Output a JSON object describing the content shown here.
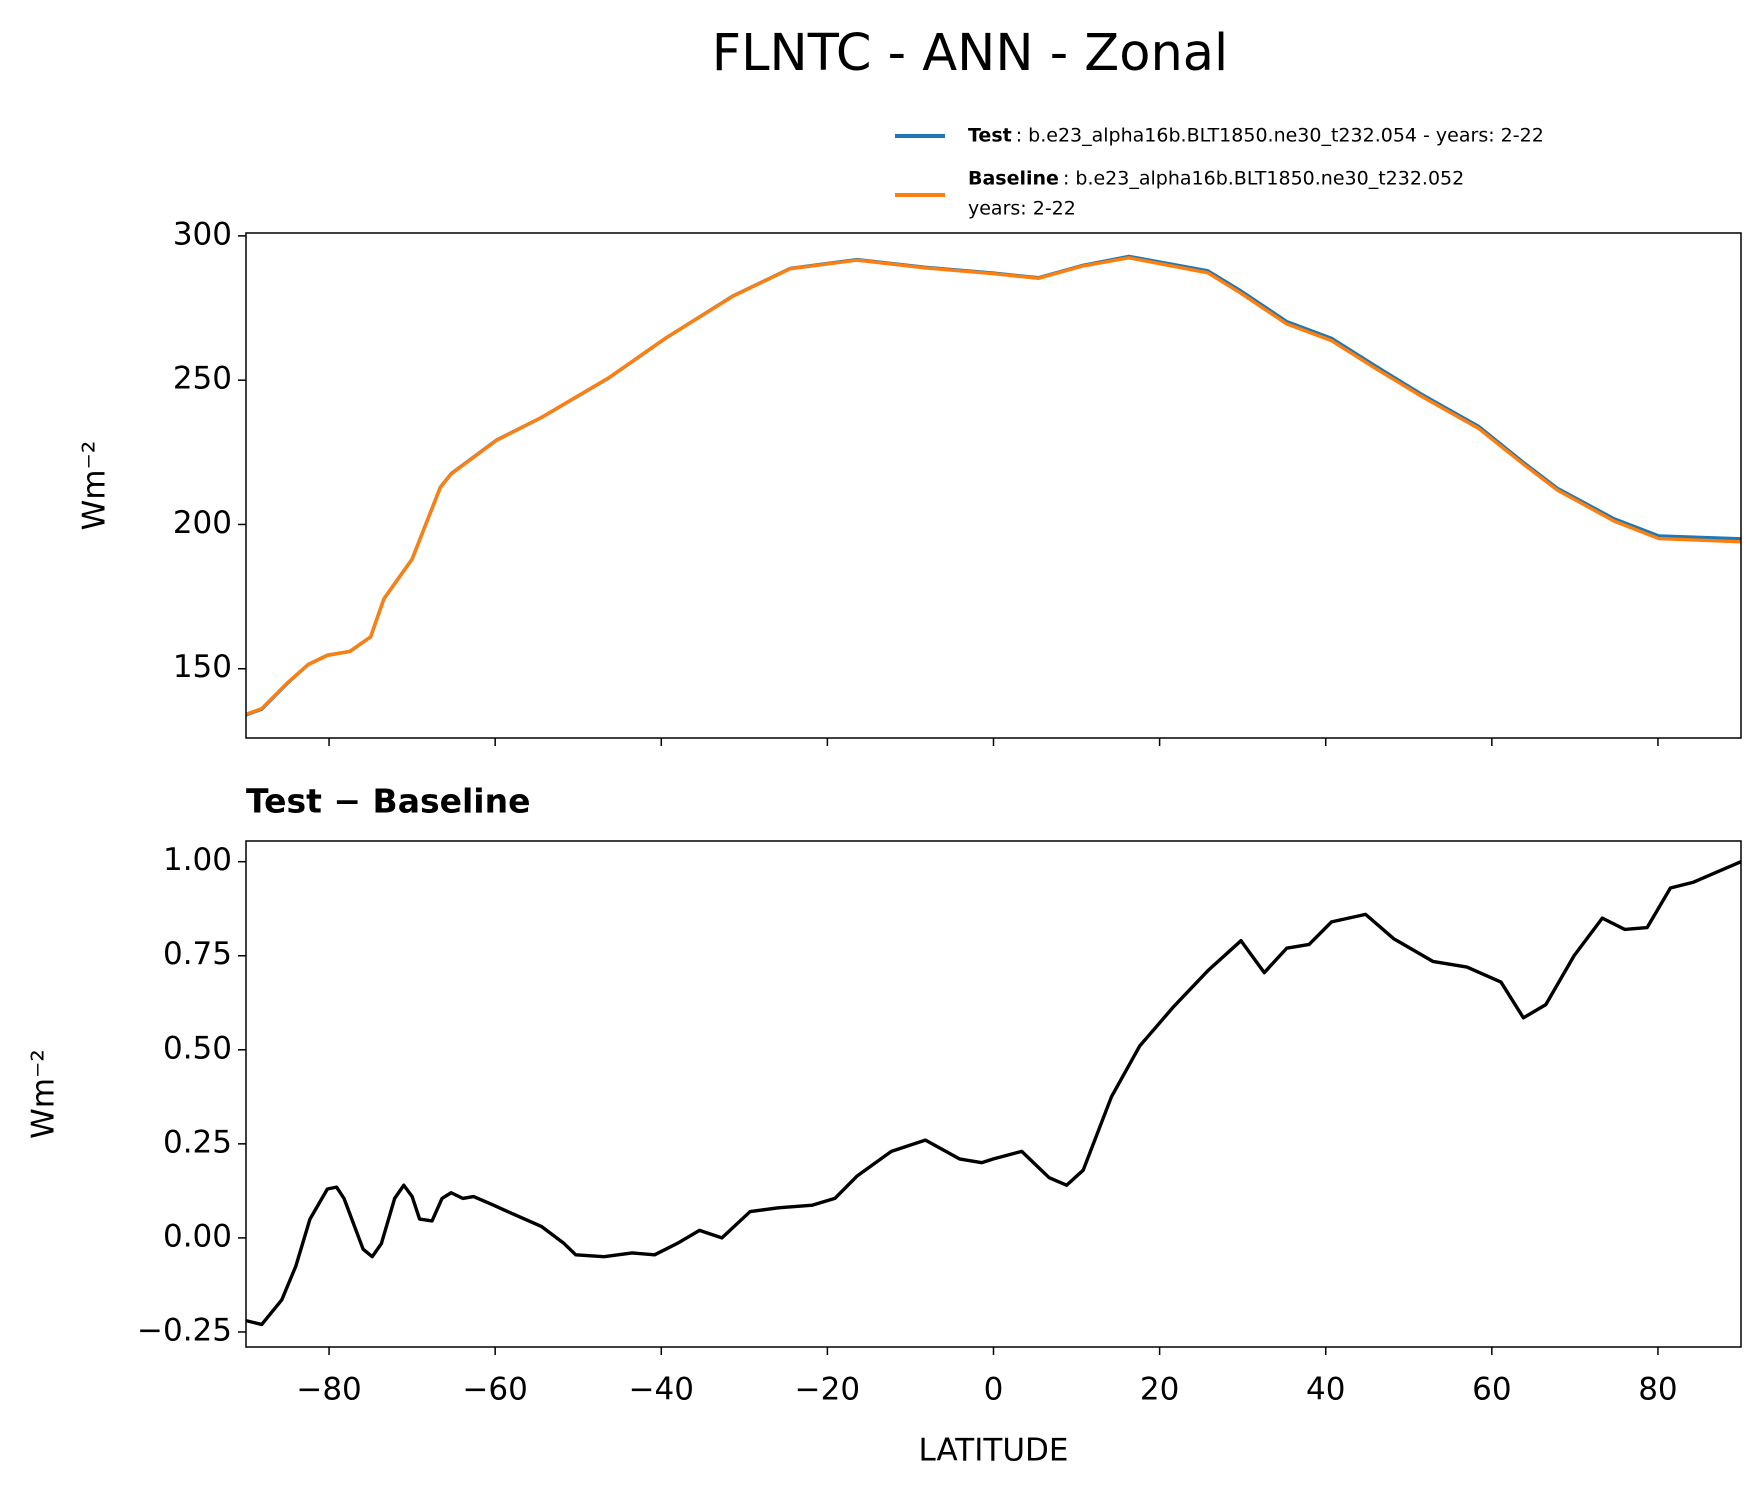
{
  "title": "FLNTC - ANN - Zonal",
  "chart_data": [
    {
      "type": "line",
      "ylabel": "Wm⁻²",
      "x": [
        -90,
        -88.1,
        -85,
        -82.5,
        -80.2,
        -77.5,
        -75,
        -73.4,
        -70,
        -66.6,
        -65.3,
        -59.8,
        -54.4,
        -46.3,
        -39.5,
        -31.3,
        -24.5,
        -16.4,
        -8.2,
        0,
        5.4,
        10.8,
        16.3,
        25.8,
        29.8,
        35.3,
        40.7,
        46.1,
        51.6,
        58.4,
        63.8,
        67.9,
        74.7,
        80.1,
        90
      ],
      "series": [
        {
          "name": "Test",
          "label": [
            ": b.e23_alpha16b.BLT1850.ne30_t232.054 - years: 2-22"
          ],
          "color": "#1f77b4",
          "values": [
            134,
            136,
            145,
            151.5,
            154.7,
            156,
            161,
            174.2,
            188,
            212.9,
            217.6,
            229.3,
            237.1,
            250.8,
            264.5,
            279.3,
            288.7,
            291.8,
            289.1,
            287.1,
            285.5,
            289.8,
            292.9,
            287.9,
            280.9,
            270.3,
            264.5,
            254.7,
            245,
            234,
            221.5,
            212.5,
            202,
            196,
            195
          ]
        },
        {
          "name": "Baseline",
          "label": [
            ": b.e23_alpha16b.BLT1850.ne30_t232.052",
            "years: 2-22"
          ],
          "color": "#ff7f0e",
          "values": [
            134.2,
            136.2,
            145.2,
            151.5,
            154.6,
            156,
            161.05,
            174.2,
            188,
            212.8,
            217.5,
            229.2,
            237.1,
            250.9,
            264.5,
            279.2,
            288.6,
            291.6,
            288.9,
            286.9,
            285.3,
            289.6,
            292.4,
            287.2,
            280.1,
            269.5,
            263.7,
            253.9,
            244.3,
            233.3,
            220.9,
            211.9,
            201.2,
            195.1,
            194
          ]
        }
      ],
      "xlim": [
        -90,
        90
      ],
      "xticks": [
        -80,
        -60,
        -40,
        -20,
        0,
        20,
        40,
        60,
        80
      ],
      "ylim": [
        126,
        301
      ],
      "yticks": [
        150,
        200,
        250,
        300
      ],
      "legend": "upper right"
    },
    {
      "type": "line",
      "title": "Test − Baseline",
      "xlabel": "LATITUDE",
      "ylabel": "Wm⁻²",
      "x": [
        -90,
        -88.1,
        -85.7,
        -84,
        -82.3,
        -80.2,
        -79.1,
        -78.2,
        -75.9,
        -74.8,
        -73.7,
        -72.1,
        -71,
        -70,
        -69.1,
        -67.6,
        -66.4,
        -65.3,
        -63.9,
        -62.6,
        -60.5,
        -58.5,
        -54.4,
        -51.7,
        -50.3,
        -46.9,
        -43.5,
        -40.8,
        -38.1,
        -35.4,
        -32.7,
        -29.3,
        -25.9,
        -21.8,
        -19.1,
        -16.4,
        -12.3,
        -8.2,
        -4.1,
        -1.4,
        0,
        3.4,
        6.7,
        8.8,
        10.8,
        14.2,
        17.6,
        21.7,
        25.8,
        29.8,
        32.6,
        35.3,
        38,
        40.7,
        44.8,
        48.2,
        52.9,
        57,
        61.1,
        63.8,
        66.5,
        69.9,
        73.3,
        76,
        78.7,
        81.5,
        84.2,
        90
      ],
      "series": [
        {
          "name": "Test − Baseline",
          "color": "#000000",
          "values": [
            -0.22,
            -0.23,
            -0.165,
            -0.075,
            0.05,
            0.13,
            0.135,
            0.105,
            -0.03,
            -0.05,
            -0.015,
            0.105,
            0.14,
            0.11,
            0.05,
            0.045,
            0.105,
            0.12,
            0.105,
            0.11,
            0.09,
            0.07,
            0.03,
            -0.015,
            -0.045,
            -0.05,
            -0.04,
            -0.045,
            -0.015,
            0.02,
            0,
            0.07,
            0.08,
            0.087,
            0.105,
            0.165,
            0.23,
            0.26,
            0.21,
            0.2,
            0.21,
            0.23,
            0.16,
            0.14,
            0.18,
            0.375,
            0.51,
            0.615,
            0.71,
            0.79,
            0.705,
            0.77,
            0.78,
            0.84,
            0.86,
            0.795,
            0.735,
            0.72,
            0.68,
            0.585,
            0.62,
            0.75,
            0.85,
            0.82,
            0.825,
            0.93,
            0.945,
            1.0
          ]
        }
      ],
      "xlim": [
        -90,
        90
      ],
      "xticks": [
        {
          "value": -80,
          "label": "−80"
        },
        {
          "value": -60,
          "label": "−60"
        },
        {
          "value": -40,
          "label": "−40"
        },
        {
          "value": -20,
          "label": "−20"
        },
        0,
        20,
        40,
        60,
        80
      ],
      "ylim": [
        -0.29,
        1.055
      ],
      "yticks": [
        {
          "value": -0.25,
          "label": "−0.25"
        },
        {
          "value": 0,
          "label": "0.00"
        },
        {
          "value": 0.25,
          "label": "0.25"
        },
        {
          "value": 0.5,
          "label": "0.50"
        },
        {
          "value": 0.75,
          "label": "0.75"
        },
        {
          "value": 1,
          "label": "1.00"
        }
      ]
    }
  ]
}
